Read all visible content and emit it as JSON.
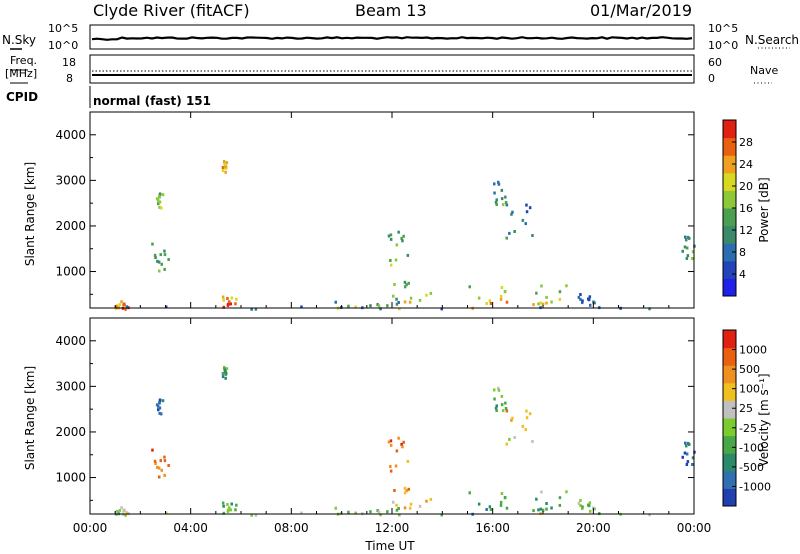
{
  "header": {
    "station": "Clyde River (fitACF)",
    "beam": "Beam 13",
    "date": "01/Mar/2019"
  },
  "nsky_panel": {
    "left_label": "N.Sky",
    "right_label": "N.Search",
    "left_ticks": [
      "10^5",
      "10^0"
    ],
    "right_ticks": [
      "10^5",
      "10^0"
    ]
  },
  "freq_panel": {
    "left_label_top": "Freq.",
    "left_label_bottom": "[MHz]",
    "left_ticks": [
      "18",
      "8"
    ],
    "right_label": "Nave",
    "right_ticks": [
      "60",
      "0"
    ]
  },
  "cpid_panel": {
    "label": "CPID",
    "text": "normal (fast) 151"
  },
  "chart_data": [
    {
      "type": "heatmap",
      "name": "power-panel",
      "ylabel": "Slant Range [km]",
      "ylim": [
        200,
        4500
      ],
      "yticks": [
        "1000",
        "2000",
        "3000",
        "4000"
      ],
      "xlim_hours": [
        0,
        24
      ],
      "colorbar": {
        "label": "Power [dB]",
        "ticks": [
          "4",
          "8",
          "12",
          "16",
          "20",
          "24",
          "28"
        ],
        "colors": [
          "#1f20e8",
          "#2244b8",
          "#2a6eb0",
          "#3a8a6a",
          "#4aa050",
          "#8cc838",
          "#d8d820",
          "#f0a020",
          "#e86010",
          "#e02010"
        ]
      },
      "blobs": [
        {
          "t": [
            0.8,
            1.5
          ],
          "r": [
            200,
            400
          ],
          "c": [
            0.9,
            0.7
          ]
        },
        {
          "t": [
            2.4,
            3.1
          ],
          "r": [
            1000,
            1700
          ],
          "c": [
            0.5,
            0.35
          ]
        },
        {
          "t": [
            2.6,
            2.9
          ],
          "r": [
            2400,
            2800
          ],
          "c": [
            0.6,
            0.45
          ]
        },
        {
          "t": [
            5.2,
            5.8
          ],
          "r": [
            200,
            500
          ],
          "c": [
            0.95,
            0.75
          ]
        },
        {
          "t": [
            5.2,
            5.4
          ],
          "r": [
            3200,
            3450
          ],
          "c": [
            0.8,
            0.7
          ]
        },
        {
          "t": [
            9.5,
            12.5
          ],
          "r": [
            200,
            450
          ],
          "c": [
            0.6,
            0.2
          ]
        },
        {
          "t": [
            11.8,
            12.6
          ],
          "r": [
            1100,
            1900
          ],
          "c": [
            0.55,
            0.35
          ]
        },
        {
          "t": [
            12.0,
            13.5
          ],
          "r": [
            300,
            800
          ],
          "c": [
            0.75,
            0.4
          ]
        },
        {
          "t": [
            15.0,
            17.0
          ],
          "r": [
            200,
            700
          ],
          "c": [
            0.85,
            0.55
          ]
        },
        {
          "t": [
            16.5,
            17.6
          ],
          "r": [
            1700,
            2500
          ],
          "c": [
            0.45,
            0.2
          ]
        },
        {
          "t": [
            16.0,
            16.5
          ],
          "r": [
            2500,
            3100
          ],
          "c": [
            0.45,
            0.2
          ]
        },
        {
          "t": [
            17.5,
            19.0
          ],
          "r": [
            200,
            800
          ],
          "c": [
            0.7,
            0.45
          ]
        },
        {
          "t": [
            19.3,
            20.2
          ],
          "r": [
            200,
            550
          ],
          "c": [
            0.3,
            0.15
          ]
        },
        {
          "t": [
            23.5,
            24.0
          ],
          "r": [
            1300,
            1800
          ],
          "c": [
            0.5,
            0.3
          ]
        },
        {
          "t": [
            0.0,
            24.0
          ],
          "r": [
            200,
            260
          ],
          "c": [
            0.3,
            0.1
          ]
        }
      ]
    },
    {
      "type": "heatmap",
      "name": "velocity-panel",
      "ylabel": "Slant Range [km]",
      "ylim": [
        200,
        4500
      ],
      "yticks": [
        "1000",
        "2000",
        "3000",
        "4000"
      ],
      "xlim_hours": [
        0,
        24
      ],
      "xticks": [
        "00:00",
        "04:00",
        "08:00",
        "12:00",
        "16:00",
        "20:00",
        "00:00"
      ],
      "xlabel": "Time UT",
      "colorbar": {
        "label": "Velocity [m s⁻¹]",
        "ticks": [
          "1000",
          "500",
          "100",
          "25",
          "-25",
          "-100",
          "-500",
          "-1000"
        ],
        "colors": [
          "#2040b0",
          "#3070b0",
          "#2a8a6a",
          "#48a848",
          "#7ccc30",
          "#c0c0c0",
          "#f0c020",
          "#f09020",
          "#e86010",
          "#e02010"
        ]
      },
      "blobs": [
        {
          "t": [
            0.8,
            1.5
          ],
          "r": [
            200,
            400
          ],
          "c": [
            0.4,
            0.55
          ]
        },
        {
          "t": [
            2.4,
            3.1
          ],
          "r": [
            1000,
            1700
          ],
          "c": [
            0.8,
            0.9
          ]
        },
        {
          "t": [
            2.6,
            2.9
          ],
          "r": [
            2400,
            2800
          ],
          "c": [
            0.05,
            0.15
          ]
        },
        {
          "t": [
            5.2,
            5.8
          ],
          "r": [
            200,
            500
          ],
          "c": [
            0.25,
            0.4
          ]
        },
        {
          "t": [
            5.2,
            5.4
          ],
          "r": [
            3200,
            3450
          ],
          "c": [
            0.2,
            0.35
          ]
        },
        {
          "t": [
            9.5,
            12.5
          ],
          "r": [
            200,
            450
          ],
          "c": [
            0.35,
            0.55
          ]
        },
        {
          "t": [
            11.8,
            12.6
          ],
          "r": [
            1100,
            1900
          ],
          "c": [
            0.75,
            0.85
          ]
        },
        {
          "t": [
            12.0,
            13.5
          ],
          "r": [
            300,
            800
          ],
          "c": [
            0.6,
            0.8
          ]
        },
        {
          "t": [
            15.0,
            17.0
          ],
          "r": [
            200,
            700
          ],
          "c": [
            0.2,
            0.4
          ]
        },
        {
          "t": [
            16.5,
            17.6
          ],
          "r": [
            1700,
            2500
          ],
          "c": [
            0.55,
            0.8
          ]
        },
        {
          "t": [
            16.0,
            16.5
          ],
          "r": [
            2500,
            3100
          ],
          "c": [
            0.3,
            0.55
          ]
        },
        {
          "t": [
            17.5,
            19.0
          ],
          "r": [
            200,
            800
          ],
          "c": [
            0.2,
            0.45
          ]
        },
        {
          "t": [
            19.3,
            20.2
          ],
          "r": [
            200,
            550
          ],
          "c": [
            0.4,
            0.5
          ]
        },
        {
          "t": [
            23.5,
            24.0
          ],
          "r": [
            1300,
            1800
          ],
          "c": [
            0.05,
            0.15
          ]
        },
        {
          "t": [
            0.0,
            24.0
          ],
          "r": [
            200,
            260
          ],
          "c": [
            0.4,
            0.6
          ]
        }
      ]
    }
  ]
}
